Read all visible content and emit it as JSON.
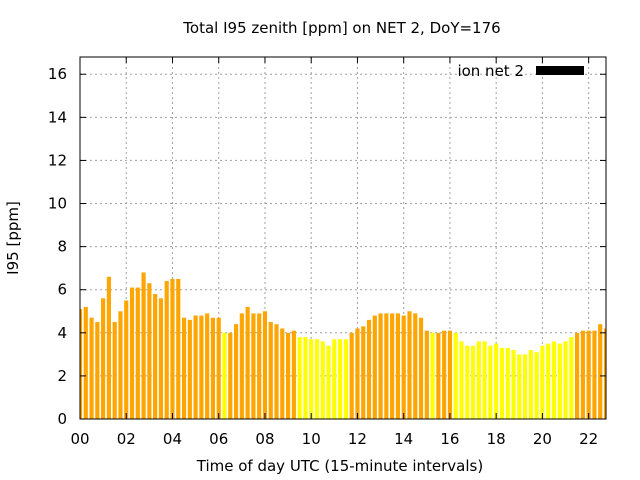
{
  "chart_data": {
    "type": "bar",
    "title": "Total I95 zenith [ppm] on NET 2, DoY=176",
    "xlabel": "Time of day UTC (15-minute intervals)",
    "ylabel": "I95 [ppm]",
    "xlim": [
      0,
      22.75
    ],
    "ylim": [
      0,
      16.8
    ],
    "x_ticks": [
      "00",
      "02",
      "04",
      "06",
      "08",
      "10",
      "12",
      "14",
      "16",
      "18",
      "20",
      "22"
    ],
    "y_ticks": [
      "0",
      "2",
      "4",
      "6",
      "8",
      "10",
      "12",
      "14",
      "16"
    ],
    "grid": true,
    "legend": {
      "position": "top-right",
      "label": "ion net 2",
      "swatch_color": "#000000"
    },
    "colors": {
      "orange": "#ffa500",
      "yellow": "#ffff00"
    },
    "interval_hours": 0.25,
    "series": [
      {
        "name": "ion net 2",
        "values": [
          5.1,
          5.2,
          4.7,
          4.5,
          5.6,
          6.6,
          4.5,
          5.0,
          5.5,
          6.1,
          6.1,
          6.8,
          6.3,
          5.8,
          5.6,
          6.4,
          6.5,
          6.5,
          4.7,
          4.6,
          4.8,
          4.8,
          4.9,
          4.7,
          4.7,
          4.0,
          4.0,
          4.4,
          4.9,
          5.2,
          4.9,
          4.9,
          5.0,
          4.5,
          4.4,
          4.2,
          4.0,
          4.1,
          3.8,
          3.8,
          3.7,
          3.7,
          3.6,
          3.4,
          3.7,
          3.7,
          3.7,
          4.0,
          4.2,
          4.3,
          4.6,
          4.8,
          4.9,
          4.9,
          4.9,
          4.9,
          4.8,
          5.0,
          4.9,
          4.7,
          4.1,
          4.0,
          4.0,
          4.1,
          4.1,
          4.0,
          3.6,
          3.4,
          3.4,
          3.6,
          3.6,
          3.4,
          3.5,
          3.3,
          3.3,
          3.2,
          3.0,
          3.0,
          3.2,
          3.1,
          3.4,
          3.5,
          3.6,
          3.5,
          3.6,
          3.8,
          4.0,
          4.1,
          4.1,
          4.1,
          4.4,
          4.2,
          3.4
        ],
        "colors": [
          "orange",
          "orange",
          "orange",
          "orange",
          "orange",
          "orange",
          "orange",
          "orange",
          "orange",
          "orange",
          "orange",
          "orange",
          "orange",
          "orange",
          "orange",
          "orange",
          "orange",
          "orange",
          "orange",
          "orange",
          "orange",
          "orange",
          "orange",
          "orange",
          "orange",
          "yellow",
          "orange",
          "orange",
          "orange",
          "orange",
          "orange",
          "orange",
          "orange",
          "orange",
          "orange",
          "orange",
          "orange",
          "orange",
          "yellow",
          "yellow",
          "yellow",
          "yellow",
          "yellow",
          "yellow",
          "yellow",
          "yellow",
          "yellow",
          "orange",
          "orange",
          "orange",
          "orange",
          "orange",
          "orange",
          "orange",
          "orange",
          "orange",
          "orange",
          "orange",
          "orange",
          "orange",
          "orange",
          "yellow",
          "orange",
          "orange",
          "orange",
          "yellow",
          "yellow",
          "yellow",
          "yellow",
          "yellow",
          "yellow",
          "yellow",
          "yellow",
          "yellow",
          "yellow",
          "yellow",
          "yellow",
          "yellow",
          "yellow",
          "yellow",
          "yellow",
          "yellow",
          "yellow",
          "yellow",
          "yellow",
          "yellow",
          "orange",
          "orange",
          "orange",
          "orange",
          "orange",
          "orange",
          "yellow"
        ]
      }
    ]
  }
}
